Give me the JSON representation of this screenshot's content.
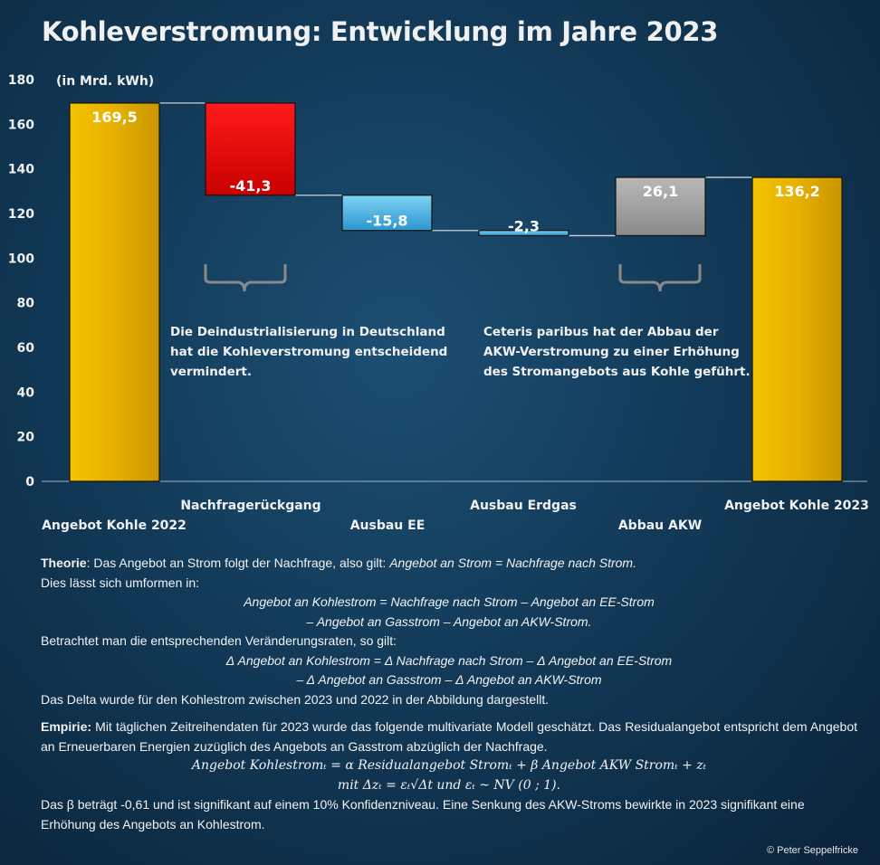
{
  "title": "Kohleverstromung: Entwicklung im Jahre 2023",
  "chart_data": {
    "type": "waterfall",
    "unit_label": "(in Mrd. kWh)",
    "ylim": [
      0,
      180
    ],
    "yticks": [
      0,
      20,
      40,
      60,
      80,
      100,
      120,
      140,
      160,
      180
    ],
    "bars": [
      {
        "category": "Angebot Kohle 2022",
        "kind": "total",
        "start": 0,
        "end": 169.5,
        "label": "169,5",
        "color": "#e9b400"
      },
      {
        "category": "Nachfragerückgang",
        "kind": "delta",
        "start": 169.5,
        "end": 128.2,
        "label": "-41,3",
        "color": "#e00000"
      },
      {
        "category": "Ausbau EE",
        "kind": "delta",
        "start": 128.2,
        "end": 112.4,
        "label": "-15,8",
        "color": "#4fb8e6"
      },
      {
        "category": "Ausbau Erdgas",
        "kind": "delta",
        "start": 112.4,
        "end": 110.1,
        "label": "-2,3",
        "color": "#4fb8e6"
      },
      {
        "category": "Abbau AKW",
        "kind": "delta",
        "start": 110.1,
        "end": 136.2,
        "label": "26,1",
        "color": "#a0a0a0"
      },
      {
        "category": "Angebot Kohle 2023",
        "kind": "total",
        "start": 0,
        "end": 136.2,
        "label": "136,2",
        "color": "#e9b400"
      }
    ],
    "annotations": [
      "Die Deindustrialisierung in Deutschland hat die Kohleverstromung entscheidend vermindert.",
      "Ceteris paribus hat der Abbau der AKW-Verstromung zu einer Erhöhung des Stromangebots aus Kohle geführt."
    ]
  },
  "text": {
    "theory_label": "Theorie",
    "theory_intro": ": Das Angebot an Strom folgt der Nachfrage, also gilt: ",
    "theory_identity": "Angebot an Strom = Nachfrage nach Strom.",
    "transform": "Dies lässt sich umformen in:",
    "eq1_line1": "Angebot an Kohlestrom = Nachfrage nach Strom – Angebot an EE-Strom",
    "eq1_line2": "– Angebot an Gasstrom – Angebot an AKW-Strom.",
    "rates": "Betrachtet man die entsprechenden Veränderungsraten, so gilt:",
    "eq2_line1": "Δ Angebot an Kohlestrom = Δ Nachfrage nach Strom – Δ Angebot an EE-Strom",
    "eq2_line2": "– Δ Angebot an Gasstrom – Δ Angebot an AKW-Strom",
    "delta_note": "Das Delta wurde für den Kohlestrom zwischen 2023 und 2022 in der Abbildung dargestellt.",
    "empirie_label": "Empirie:",
    "empirie_text": " Mit täglichen Zeitreihendaten für 2023 wurde das folgende multivariate Modell geschätzt. Das Residualangebot entspricht dem Angebot an Erneuerbaren Energien zuzüglich des Angebots an Gasstrom abzüglich der Nachfrage.",
    "model_eq1": "Angebot Kohlestromₜ = α Residualangebot Stromₜ + β Angebot AKW Stromₜ + zₜ",
    "model_eq2": "mit Δzₜ = εₜ√Δt und εₜ ~ NV (0 ; 1).",
    "beta_text": "Das β beträgt -0,61 und ist signifikant auf einem 10% Konfidenzniveau. Eine Senkung des AKW-Stroms bewirkte in 2023 signifikant eine Erhöhung des Angebots an Kohlestrom."
  },
  "copyright": "© Peter Seppelfricke"
}
